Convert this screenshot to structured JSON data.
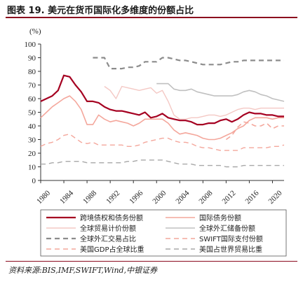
{
  "header": {
    "title": "图表 19. 美元在货币国际化多维度的份额占比"
  },
  "footer": {
    "source": "资料来源:BIS,IMF,SWIFT,Wind,中银证券"
  },
  "chart_data": {
    "type": "line",
    "unit_label": "(%)",
    "xlim": [
      1980,
      2022
    ],
    "ylim": [
      0,
      100
    ],
    "x_ticks": [
      1980,
      1984,
      1988,
      1992,
      1996,
      2000,
      2004,
      2008,
      2012,
      2016,
      2020
    ],
    "y_ticks": [
      0,
      10,
      20,
      30,
      40,
      50,
      60,
      70,
      80,
      90,
      100
    ],
    "grid": false,
    "legend_position": "bottom",
    "series": [
      {
        "name": "跨境债权和债务份额",
        "color": "#a50021",
        "style": "solid",
        "width": 2.2,
        "x": [
          1980,
          1982,
          1983,
          1984,
          1985,
          1986,
          1987,
          1988,
          1989,
          1990,
          1991,
          1992,
          1993,
          1994,
          1995,
          1996,
          1997,
          1998,
          1999,
          2000,
          2001,
          2002,
          2003,
          2004,
          2005,
          2006,
          2007,
          2008,
          2009,
          2010,
          2011,
          2012,
          2013,
          2014,
          2015,
          2016,
          2017,
          2018,
          2019,
          2020,
          2021,
          2022
        ],
        "y": [
          58,
          62,
          66,
          77,
          76,
          70,
          65,
          58,
          58,
          57,
          54,
          52,
          51,
          51,
          50,
          49,
          48,
          50,
          46,
          47,
          49,
          46,
          45,
          44,
          44,
          43,
          41,
          41,
          42,
          42,
          44,
          45,
          43,
          45,
          48,
          50,
          49,
          49,
          48,
          48,
          47,
          47
        ]
      },
      {
        "name": "国际债务份额",
        "color": "#f4a79c",
        "style": "solid",
        "width": 1.6,
        "x": [
          1980,
          1981,
          1982,
          1983,
          1984,
          1985,
          1986,
          1987,
          1988,
          1989,
          1990,
          1991,
          1992,
          1993,
          1994,
          1995,
          1996,
          1997,
          1998,
          1999,
          2000,
          2001,
          2002,
          2003,
          2004,
          2005,
          2006,
          2007,
          2008,
          2009,
          2010,
          2011,
          2012,
          2013,
          2014,
          2015,
          2016,
          2017,
          2018,
          2019,
          2020,
          2021,
          2022
        ],
        "y": [
          46,
          50,
          54,
          57,
          60,
          62,
          58,
          52,
          41,
          41,
          48,
          45,
          43,
          44,
          43,
          42,
          40,
          42,
          45,
          45,
          45,
          45,
          42,
          37,
          34,
          35,
          34,
          33,
          31,
          30,
          30,
          31,
          33,
          35,
          38,
          40,
          44,
          46,
          46,
          46,
          45,
          46,
          46
        ]
      },
      {
        "name": "全球贸易计价份额",
        "color": "#f4c8c4",
        "style": "solid",
        "width": 1.4,
        "x": [
          1991,
          1992,
          1993,
          1994,
          1995,
          1996,
          1997,
          1998,
          1999,
          2000,
          2001,
          2002,
          2003,
          2004,
          2005,
          2006,
          2007,
          2008,
          2009,
          2010,
          2011,
          2012,
          2013,
          2014,
          2015,
          2016,
          2017,
          2018,
          2019,
          2020,
          2021,
          2022
        ],
        "y": [
          69,
          66,
          60,
          69,
          68,
          67,
          66,
          67,
          68,
          64,
          66,
          58,
          48,
          45,
          45,
          46,
          46,
          47,
          48,
          48,
          47,
          48,
          50,
          52,
          53,
          53,
          52,
          53,
          53,
          53,
          53,
          53
        ]
      },
      {
        "name": "全球外汇储备份额",
        "color": "#c0c0c0",
        "style": "solid",
        "width": 1.6,
        "x": [
          2000,
          2001,
          2002,
          2003,
          2004,
          2005,
          2006,
          2007,
          2008,
          2009,
          2010,
          2011,
          2012,
          2013,
          2014,
          2015,
          2016,
          2017,
          2018,
          2019,
          2020,
          2021,
          2022
        ],
        "y": [
          71,
          71,
          71,
          67,
          66,
          66,
          67,
          65,
          64,
          63,
          62,
          62,
          62,
          62,
          63,
          65,
          66,
          65,
          63,
          62,
          60,
          59,
          58
        ]
      },
      {
        "name": "全球外汇交易占比",
        "color": "#8c8c8c",
        "style": "dashed",
        "width": 2.2,
        "x": [
          1989,
          1990,
          1991,
          1992,
          1993,
          1994,
          1995,
          1996,
          1997,
          1998,
          1999,
          2000,
          2001,
          2002,
          2003,
          2004,
          2005,
          2006,
          2007,
          2008,
          2009,
          2010,
          2011,
          2012,
          2013,
          2014,
          2015,
          2016,
          2017,
          2018,
          2019,
          2020,
          2021,
          2022
        ],
        "y": [
          90,
          90,
          90,
          82,
          82,
          82,
          83,
          83,
          84,
          87,
          87,
          87,
          90,
          90,
          89,
          88,
          88,
          87,
          86,
          85,
          85,
          85,
          85,
          86,
          87,
          87,
          88,
          88,
          88,
          88,
          88,
          88,
          88,
          88
        ]
      },
      {
        "name": "SWIFT国际支付份额",
        "color": "#f4a79c",
        "style": "dashed",
        "width": 1.6,
        "x": [
          2012,
          2013,
          2014,
          2015,
          2016,
          2017,
          2018,
          2019,
          2020,
          2021,
          2022
        ],
        "y": [
          30,
          33,
          39,
          43,
          42,
          40,
          40,
          42,
          38,
          40,
          40
        ]
      },
      {
        "name": "美国GDP占全球比重",
        "color": "#f4a79c",
        "style": "dashed",
        "width": 1.4,
        "x": [
          1980,
          1981,
          1982,
          1983,
          1984,
          1985,
          1986,
          1987,
          1988,
          1989,
          1990,
          1991,
          1992,
          1993,
          1994,
          1995,
          1996,
          1997,
          1998,
          1999,
          2000,
          2001,
          2002,
          2003,
          2004,
          2005,
          2006,
          2007,
          2008,
          2009,
          2010,
          2011,
          2012,
          2013,
          2014,
          2015,
          2016,
          2017,
          2018,
          2019,
          2020,
          2021,
          2022
        ],
        "y": [
          25,
          27,
          28,
          30,
          33,
          34,
          31,
          28,
          27,
          28,
          26,
          26,
          26,
          26,
          26,
          25,
          25,
          26,
          28,
          29,
          30,
          31,
          31,
          29,
          28,
          28,
          27,
          25,
          24,
          24,
          23,
          22,
          22,
          22,
          22,
          24,
          24,
          24,
          24,
          24,
          25,
          25,
          26
        ]
      },
      {
        "name": "美国占世界贸易比重",
        "color": "#a8a8a8",
        "style": "dashed",
        "width": 1.4,
        "x": [
          1980,
          1981,
          1982,
          1983,
          1984,
          1985,
          1986,
          1987,
          1988,
          1989,
          1990,
          1991,
          1992,
          1993,
          1994,
          1995,
          1996,
          1997,
          1998,
          1999,
          2000,
          2001,
          2002,
          2003,
          2004,
          2005,
          2006,
          2007,
          2008,
          2009,
          2010,
          2011,
          2012,
          2013,
          2014,
          2015,
          2016,
          2017,
          2018,
          2019,
          2020,
          2021,
          2022
        ],
        "y": [
          12,
          12,
          13,
          13,
          14,
          14,
          14,
          14,
          13,
          13,
          13,
          13,
          13,
          13,
          13,
          14,
          14,
          15,
          15,
          15,
          15,
          15,
          14,
          13,
          12,
          12,
          12,
          11,
          11,
          11,
          11,
          11,
          10,
          10,
          10,
          11,
          11,
          11,
          11,
          11,
          11,
          11,
          11
        ]
      }
    ]
  }
}
